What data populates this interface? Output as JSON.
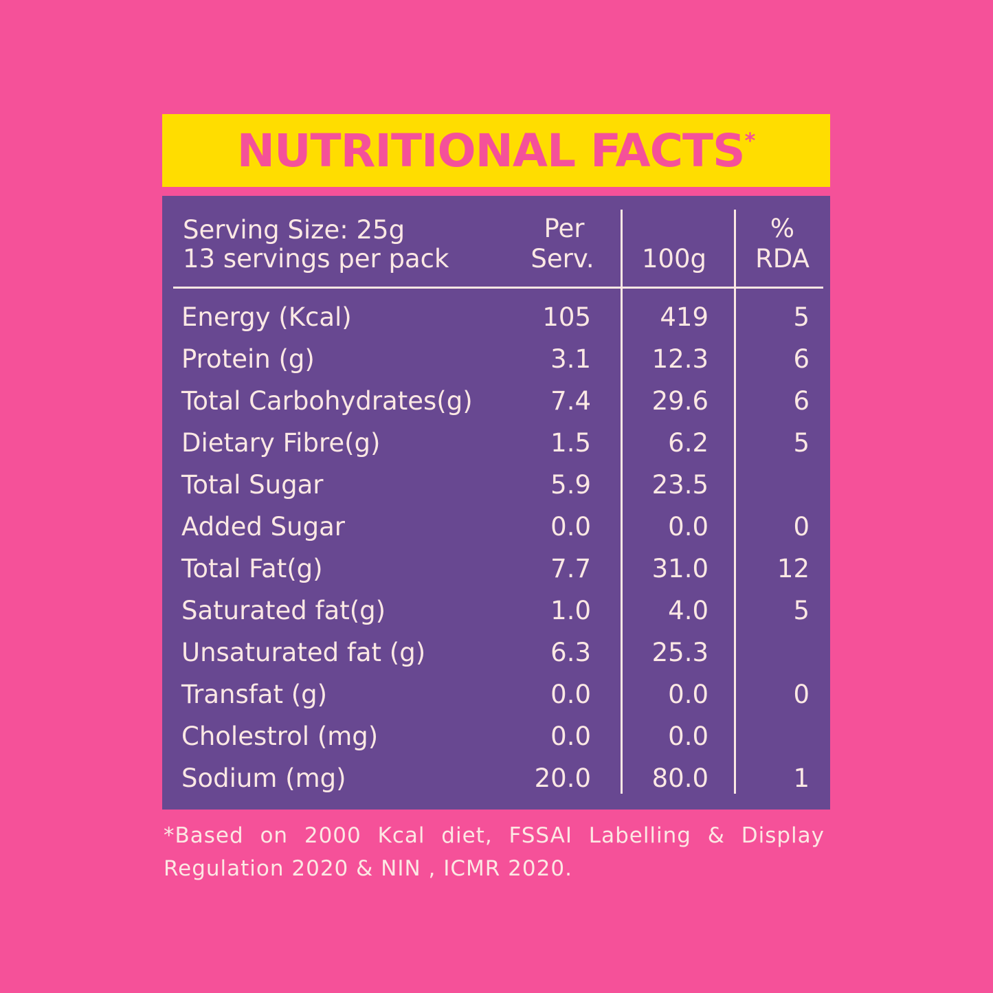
{
  "title": "NUTRITIONAL FACTS",
  "title_mark": "*",
  "header": {
    "serving_size": "Serving Size: 25g",
    "servings_per_pack": "13 servings per pack",
    "col_per_serv_1": "Per",
    "col_per_serv_2": "Serv.",
    "col_100g": "100g",
    "col_rda_1": "%",
    "col_rda_2": "RDA"
  },
  "rows": [
    {
      "name": "Energy (Kcal)",
      "per_serv": "105",
      "per_100g": "419",
      "rda": "5"
    },
    {
      "name": "Protein (g)",
      "per_serv": "3.1",
      "per_100g": "12.3",
      "rda": "6"
    },
    {
      "name": "Total Carbohydrates(g)",
      "per_serv": "7.4",
      "per_100g": "29.6",
      "rda": "6"
    },
    {
      "name": "Dietary Fibre(g)",
      "per_serv": "1.5",
      "per_100g": "6.2",
      "rda": "5"
    },
    {
      "name": "Total Sugar",
      "per_serv": "5.9",
      "per_100g": "23.5",
      "rda": ""
    },
    {
      "name": "Added Sugar",
      "per_serv": "0.0",
      "per_100g": "0.0",
      "rda": "0"
    },
    {
      "name": "Total Fat(g)",
      "per_serv": "7.7",
      "per_100g": "31.0",
      "rda": "12"
    },
    {
      "name": "Saturated fat(g)",
      "per_serv": "1.0",
      "per_100g": "4.0",
      "rda": "5"
    },
    {
      "name": "Unsaturated fat (g)",
      "per_serv": "6.3",
      "per_100g": "25.3",
      "rda": ""
    },
    {
      "name": "Transfat (g)",
      "per_serv": "0.0",
      "per_100g": "0.0",
      "rda": "0"
    },
    {
      "name": "Cholestrol (mg)",
      "per_serv": "0.0",
      "per_100g": "0.0",
      "rda": ""
    },
    {
      "name": "Sodium (mg)",
      "per_serv": "20.0",
      "per_100g": "80.0",
      "rda": "1"
    }
  ],
  "footnote_line1": "*Based on 2000 Kcal diet, FSSAI Labelling & Display",
  "footnote_line2": "Regulation 2020 & NIN , ICMR 2020.",
  "colors": {
    "background": "#F55199",
    "banner": "#FFDD00",
    "panel": "#684891",
    "text": "#FCE8E4"
  }
}
